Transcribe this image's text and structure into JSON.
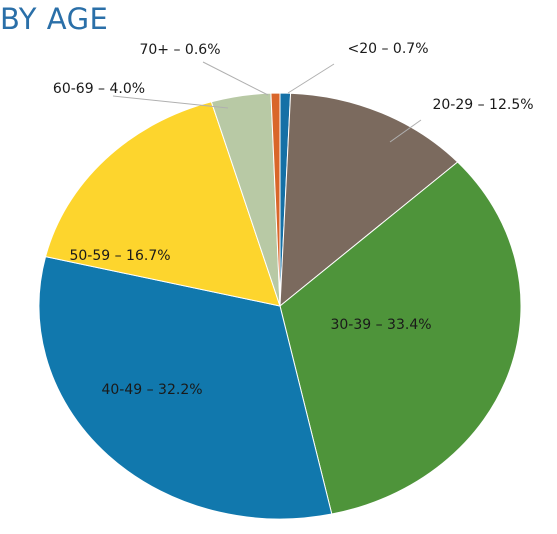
{
  "chart_data": {
    "type": "pie",
    "title": "BY AGE",
    "slices": [
      {
        "name": "<20",
        "value": 0.7,
        "label": "<20 – 0.7%",
        "color": "#1570a6"
      },
      {
        "name": "20-29",
        "value": 12.5,
        "label": "20-29 – 12.5%",
        "color": "#7b6a5e"
      },
      {
        "name": "30-39",
        "value": 33.4,
        "label": "30-39 – 33.4%",
        "color": "#4e943a"
      },
      {
        "name": "40-49",
        "value": 32.2,
        "label": "40-49 – 32.2%",
        "color": "#1178ad"
      },
      {
        "name": "50-59",
        "value": 16.7,
        "label": "50-59 – 16.7%",
        "color": "#fdd52d"
      },
      {
        "name": "60-69",
        "value": 4.0,
        "label": "60-69 – 4.0%",
        "color": "#b8c9a5"
      },
      {
        "name": "70+",
        "value": 0.6,
        "label": "70+ – 0.6%",
        "color": "#d9662a"
      }
    ],
    "start_direction": "12 o'clock",
    "slice_order": "clockwise"
  },
  "colors": {
    "title": "#2a6fa8",
    "leader_line": "#b0b0b0"
  }
}
